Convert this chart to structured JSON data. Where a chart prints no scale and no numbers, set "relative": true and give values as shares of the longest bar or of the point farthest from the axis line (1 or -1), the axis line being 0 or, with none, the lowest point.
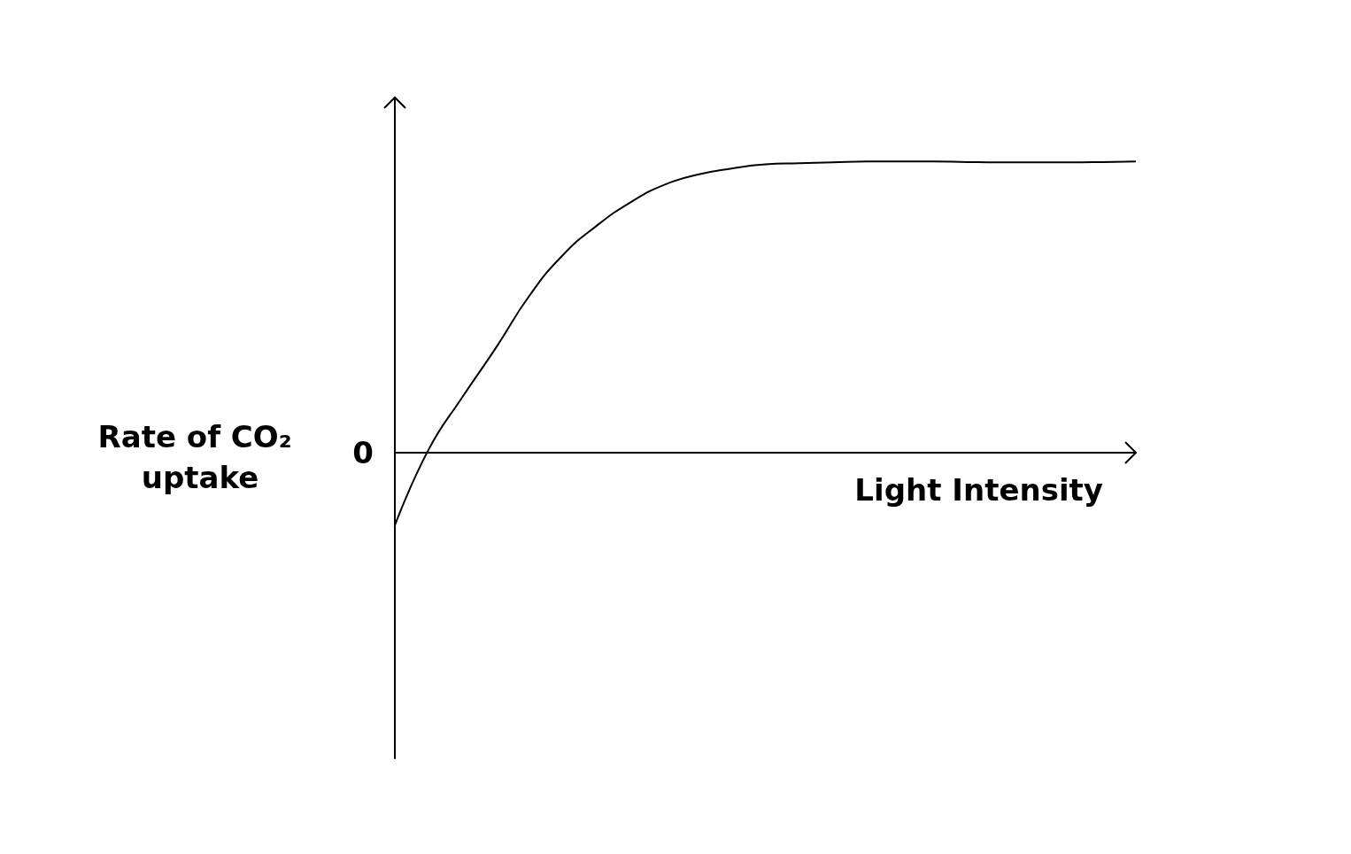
{
  "chart_data": {
    "type": "line",
    "relative": true,
    "xlabel": "Light Intensity",
    "ylabel": "Rate of CO₂ uptake",
    "annotations": [
      "0"
    ],
    "categories": [
      null,
      null,
      null,
      null,
      null,
      null,
      null,
      null,
      null,
      null,
      null,
      null,
      null,
      null,
      null,
      null,
      null,
      null,
      null,
      null,
      null,
      null,
      null
    ],
    "series": [
      {
        "color": "#000000",
        "values": [
          -0.25,
          0.01,
          0.19,
          0.36,
          0.54,
          0.68,
          0.78,
          0.86,
          0.92,
          0.955,
          0.976,
          0.99,
          0.994,
          0.997,
          1,
          1,
          1,
          0.998,
          0.997,
          0.997,
          0.997,
          0.998,
          1
        ]
      }
    ]
  }
}
